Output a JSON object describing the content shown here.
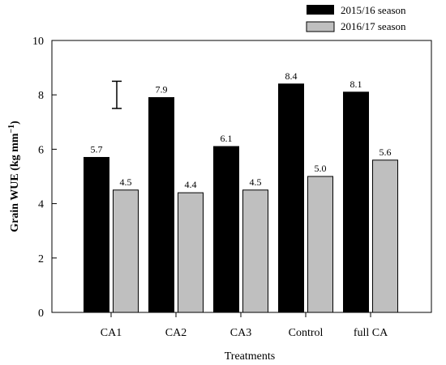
{
  "chart_data": {
    "type": "bar",
    "categories": [
      "CA1",
      "CA2",
      "CA3",
      "Control",
      "full CA"
    ],
    "series": [
      {
        "name": "2015/16 season",
        "values": [
          5.7,
          7.9,
          6.1,
          8.4,
          8.1
        ],
        "labels": [
          "5.7",
          "7.9",
          "6.1",
          "8.4",
          "8.1"
        ],
        "color": "#000000"
      },
      {
        "name": "2016/17 season",
        "values": [
          4.5,
          4.4,
          4.5,
          5.0,
          5.6
        ],
        "labels": [
          "4.5",
          "4.4",
          "4.5",
          "5.0",
          "5.6"
        ],
        "color": "#bfbfbf"
      }
    ],
    "xlabel": "Treatments",
    "ylabel": "Grain WUE (kg mm",
    "ylabel_sup": "−1",
    "ylabel_end": ")",
    "ylim": [
      0,
      10
    ],
    "yticks": [
      "0",
      "2",
      "4",
      "6",
      "8",
      "10"
    ],
    "error_bar": {
      "low": 7.5,
      "high": 8.5
    },
    "legend_position": "top-right",
    "grid": false
  }
}
